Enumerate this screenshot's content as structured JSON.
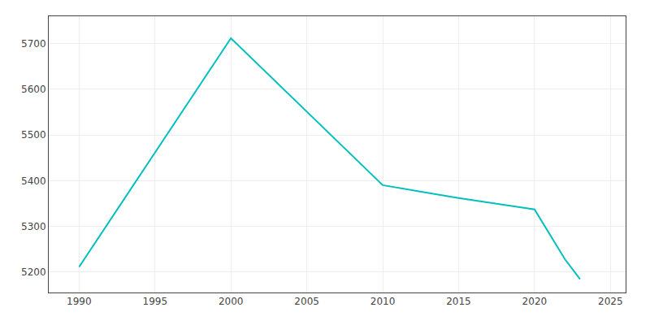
{
  "chart_data": {
    "type": "line",
    "x": [
      1990,
      2000,
      2010,
      2015,
      2020,
      2022,
      2023
    ],
    "values": [
      5211,
      5712,
      5390,
      5362,
      5337,
      5228,
      5184
    ],
    "color": "#00BFBF",
    "xlim": [
      1988,
      2026
    ],
    "ylim": [
      5155,
      5760
    ],
    "xticks": [
      1990,
      1995,
      2000,
      2005,
      2010,
      2015,
      2020,
      2025
    ],
    "yticks": [
      5200,
      5300,
      5400,
      5500,
      5600,
      5700
    ],
    "grid": true
  }
}
